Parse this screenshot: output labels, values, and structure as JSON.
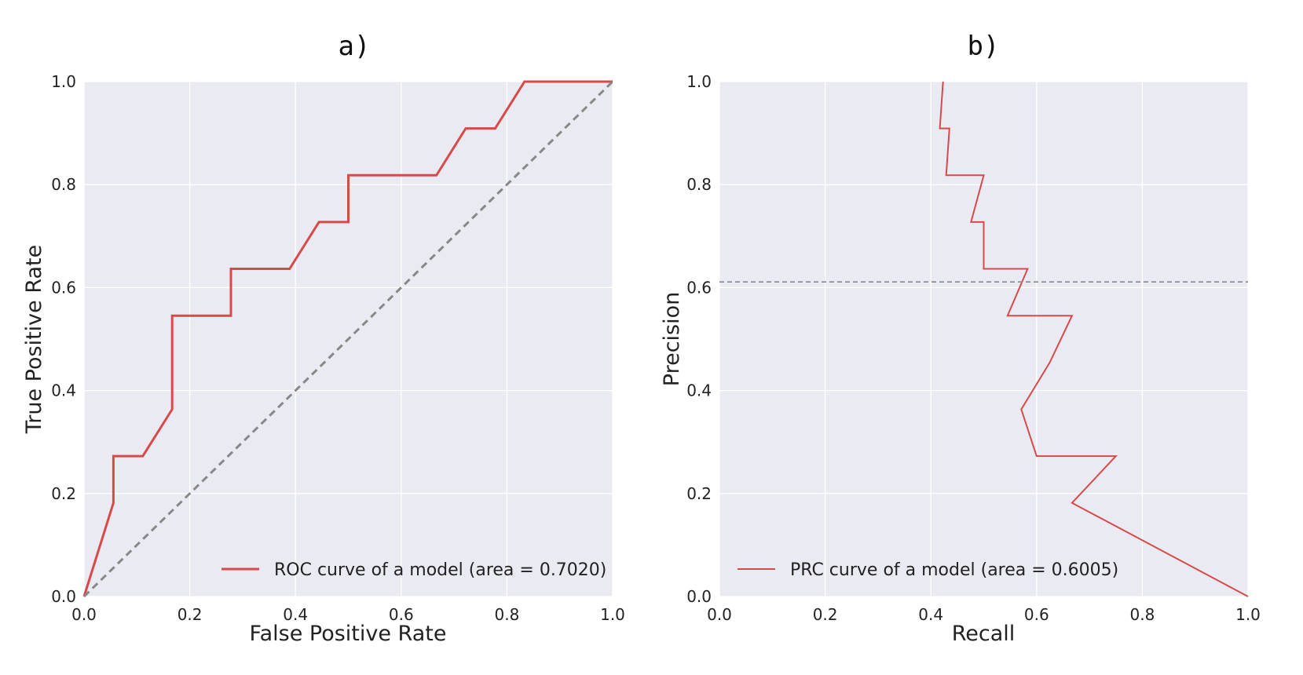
{
  "chart_data": [
    {
      "type": "line",
      "title": "a)",
      "xlabel": "False Positive Rate",
      "ylabel": "True Positive Rate",
      "xlim": [
        0,
        1
      ],
      "ylim": [
        0,
        1
      ],
      "xticks": [
        "0.0",
        "0.2",
        "0.4",
        "0.6",
        "0.8",
        "1.0"
      ],
      "yticks": [
        "0.0",
        "0.2",
        "0.4",
        "0.6",
        "0.8",
        "1.0"
      ],
      "grid": true,
      "legend_position": "bottom-right",
      "series": [
        {
          "name": "ROC curve of a model (area = 0.7020)",
          "color": "#d84a4a",
          "style": "solid",
          "x": [
            0.0,
            0.0556,
            0.0556,
            0.1111,
            0.1667,
            0.1667,
            0.2778,
            0.2778,
            0.3889,
            0.4444,
            0.5,
            0.5,
            0.6667,
            0.7222,
            0.7778,
            0.8333,
            1.0
          ],
          "y": [
            0.0,
            0.1818,
            0.2727,
            0.2727,
            0.3636,
            0.5455,
            0.5455,
            0.6364,
            0.6364,
            0.7273,
            0.7273,
            0.8182,
            0.8182,
            0.9091,
            0.9091,
            1.0,
            1.0
          ]
        },
        {
          "color": "#888888",
          "style": "dashed",
          "x": [
            0.0,
            1.0
          ],
          "y": [
            0.0,
            1.0
          ]
        }
      ]
    },
    {
      "type": "line",
      "title": "b)",
      "xlabel": "Recall",
      "ylabel": "Precision",
      "xlim": [
        0,
        1
      ],
      "ylim": [
        0,
        1
      ],
      "xticks": [
        "0.0",
        "0.2",
        "0.4",
        "0.6",
        "0.8",
        "1.0"
      ],
      "yticks": [
        "0.0",
        "0.2",
        "0.4",
        "0.6",
        "0.8",
        "1.0"
      ],
      "grid": true,
      "legend_position": "bottom-left",
      "series": [
        {
          "name": "PRC curve of a model (area = 0.6005)",
          "color": "#d84a4a",
          "style": "solid",
          "x": [
            0.423,
            0.417,
            0.435,
            0.429,
            0.5,
            0.476,
            0.5,
            0.5,
            0.583,
            0.545,
            0.667,
            0.625,
            0.571,
            0.6,
            0.75,
            0.667,
            1.0
          ],
          "y": [
            1.0,
            0.9091,
            0.9091,
            0.8182,
            0.8182,
            0.7273,
            0.7273,
            0.6364,
            0.6364,
            0.5455,
            0.5455,
            0.4545,
            0.3636,
            0.2727,
            0.2727,
            0.1818,
            0.0
          ]
        },
        {
          "color": "#888888",
          "style": "dashed",
          "x": [
            0.0,
            1.0
          ],
          "y": [
            0.611,
            0.611
          ]
        }
      ]
    }
  ]
}
